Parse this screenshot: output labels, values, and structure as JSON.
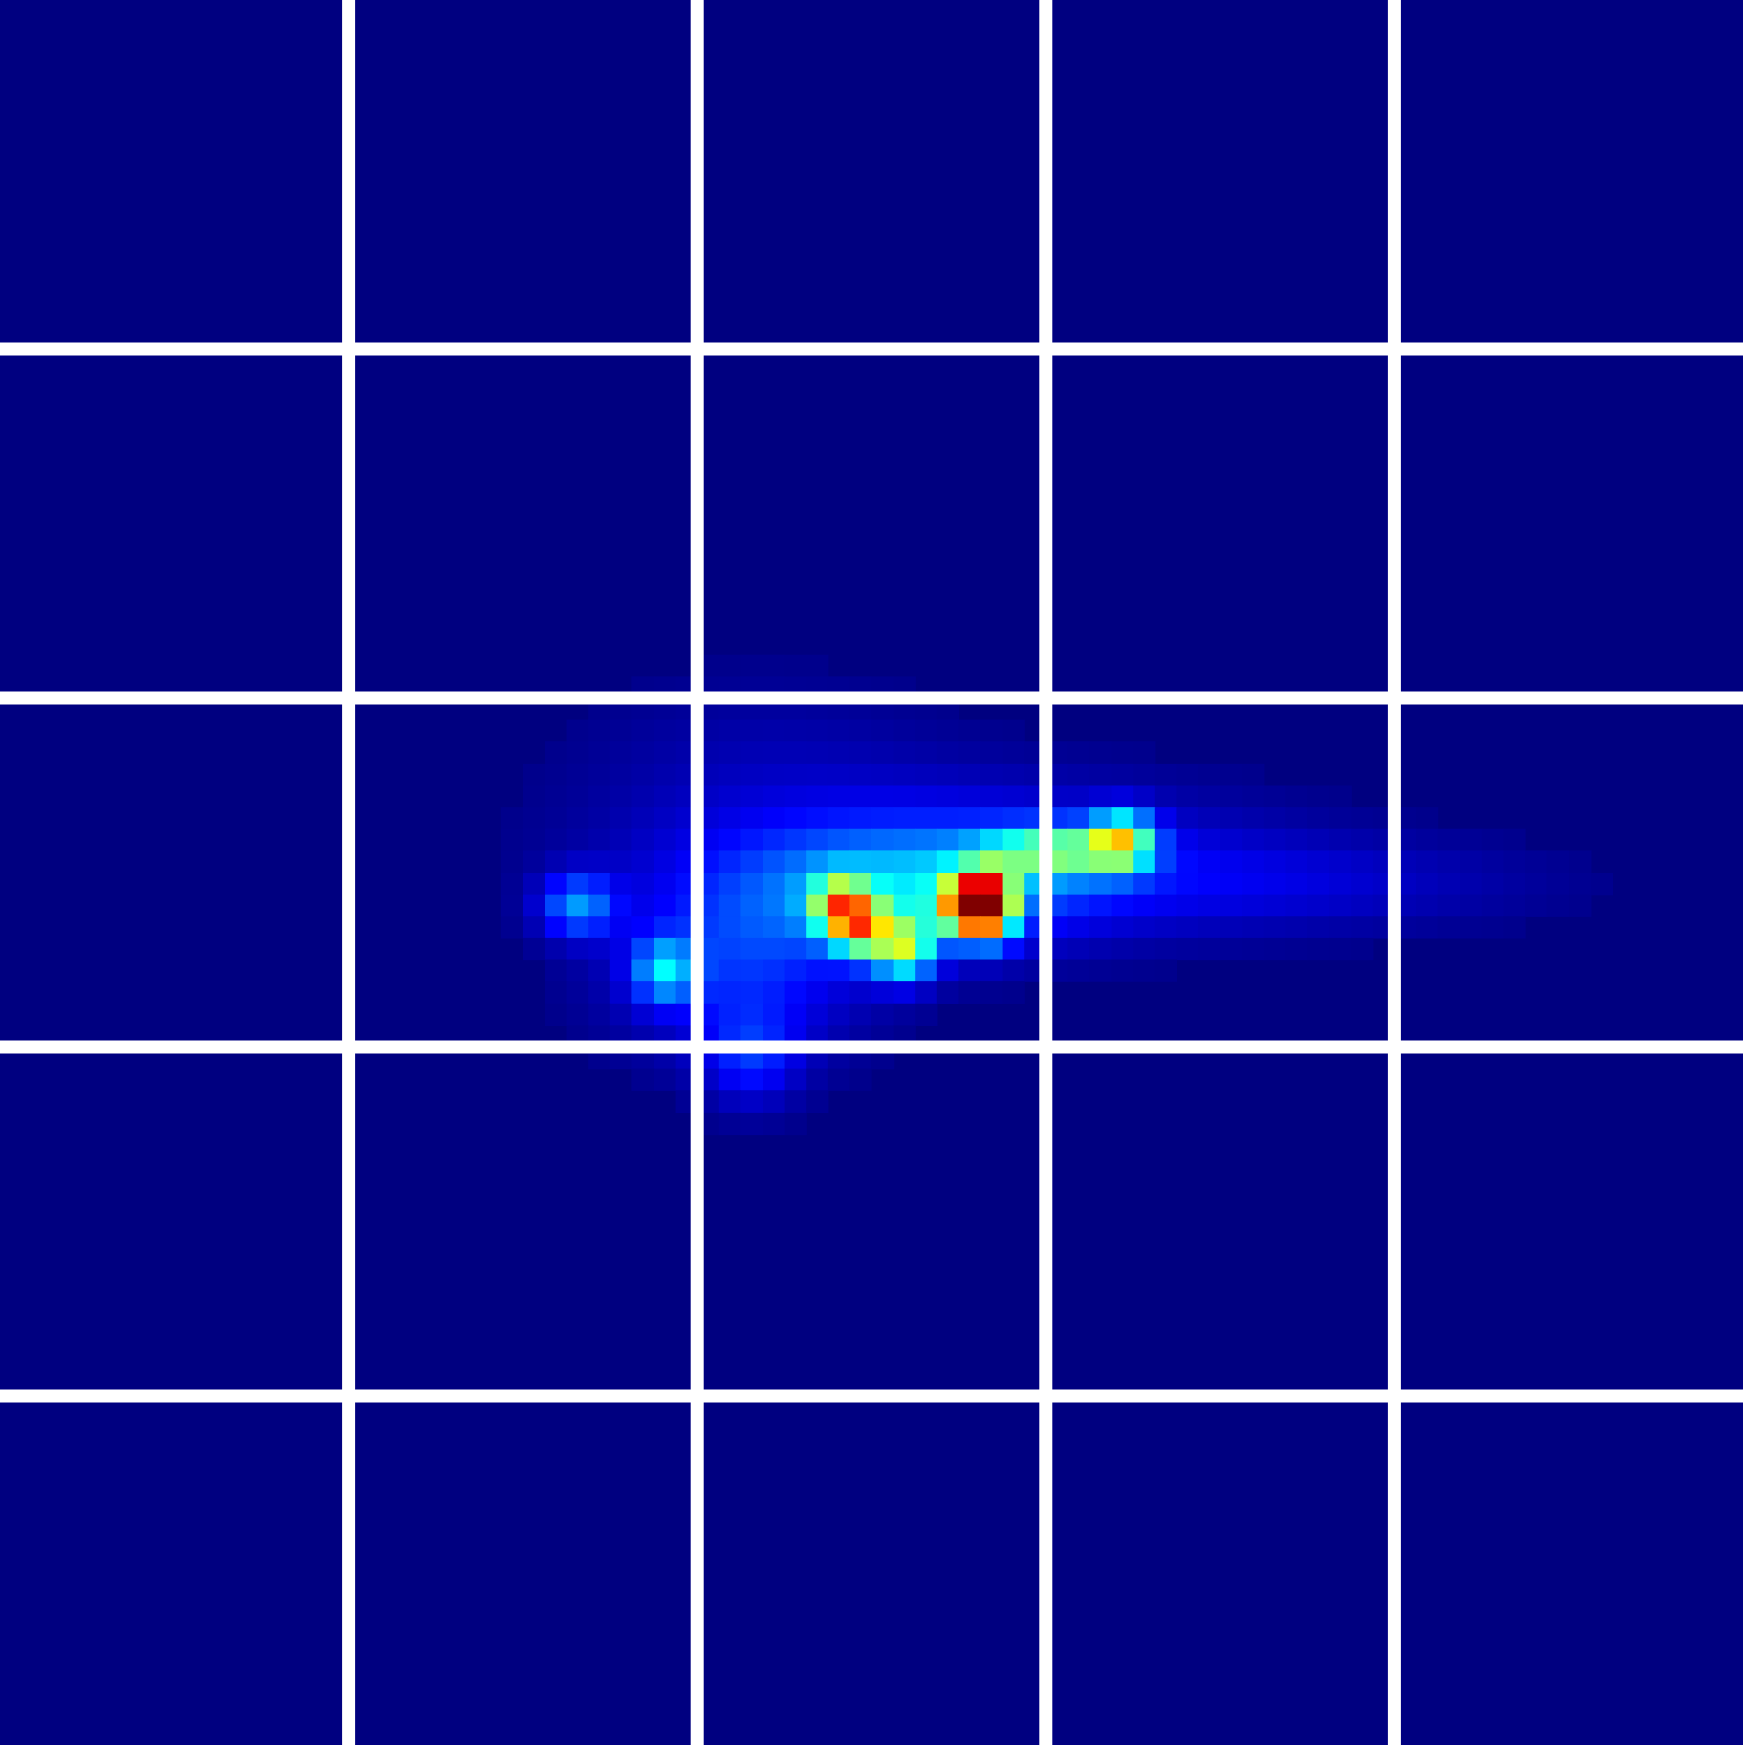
{
  "chart_data": {
    "type": "heatmap",
    "title": "",
    "xlabel": "",
    "ylabel": "",
    "grid": true,
    "legend": "none",
    "colormap": "jet",
    "vmin": 0,
    "vmax": 1,
    "cells_per_side": 80,
    "panel_grid": {
      "rows": 5,
      "cols": 5
    },
    "background_color": "#000080",
    "separator_color": "#ffffff",
    "hotspots": [
      {
        "row": 41.5,
        "col": 44.5,
        "sr": 0.9,
        "sc": 0.9,
        "v": 0.74
      },
      {
        "row": 41.5,
        "col": 45.5,
        "sr": 1.1,
        "sc": 0.8,
        "v": 0.55
      },
      {
        "row": 42.5,
        "col": 39.5,
        "sr": 0.9,
        "sc": 0.9,
        "v": 0.45
      },
      {
        "row": 41.5,
        "col": 38.5,
        "sr": 0.9,
        "sc": 0.9,
        "v": 0.42
      },
      {
        "row": 43.5,
        "col": 41.5,
        "sr": 1.0,
        "sc": 1.0,
        "v": 0.44
      },
      {
        "row": 38.5,
        "col": 51.5,
        "sr": 0.9,
        "sc": 1.0,
        "v": 0.45
      },
      {
        "row": 39.0,
        "col": 48.5,
        "sr": 0.8,
        "sc": 2.2,
        "v": 0.36
      },
      {
        "row": 41.5,
        "col": 26.5,
        "sr": 1.0,
        "sc": 1.2,
        "v": 0.24
      },
      {
        "row": 44.5,
        "col": 30.5,
        "sr": 1.0,
        "sc": 1.0,
        "v": 0.26
      },
      {
        "row": 40.8,
        "col": 42.0,
        "sr": 1.8,
        "sc": 4.5,
        "v": 0.2
      },
      {
        "row": 39.5,
        "col": 44.0,
        "sr": 2.5,
        "sc": 9.0,
        "v": 0.14
      },
      {
        "row": 44.0,
        "col": 34.0,
        "sr": 3.0,
        "sc": 4.0,
        "v": 0.16
      },
      {
        "row": 48.5,
        "col": 34.5,
        "sr": 1.5,
        "sc": 1.5,
        "v": 0.13
      },
      {
        "row": 40.5,
        "col": 59.0,
        "sr": 1.5,
        "sc": 8.0,
        "v": 0.07
      },
      {
        "row": 35.0,
        "col": 35.0,
        "sr": 3.0,
        "sc": 6.0,
        "v": 0.04
      }
    ]
  }
}
